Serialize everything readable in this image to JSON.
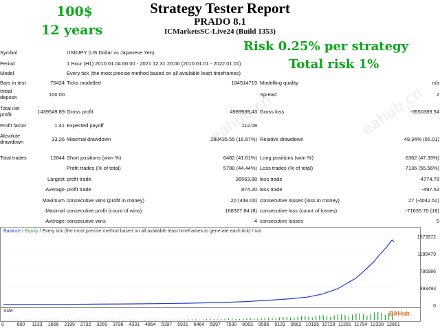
{
  "header": {
    "title": "Strategy Tester Report",
    "subtitle": "PRADO 8.1",
    "server": "ICMarketsSC-Live24 (Build 1353)"
  },
  "promo": {
    "deposit": "100$",
    "years": "12 years",
    "risk": "Risk 0.25% per strategy",
    "total": "Total risk 1%",
    "color": "#0da51c"
  },
  "watermark": "eahub.cn",
  "settings": {
    "symbol_label": "Symbol",
    "symbol_value": "USDJPY (US Dollar vs Japanese Yen)",
    "period_label": "Period",
    "period_value": "1 Hour (H1) 2010.01.04 00:00 - 2021.12.31 20:00 (2010.01.01 - 2022.01.01)",
    "model_label": "Model",
    "model_value": "Every tick (the most precise method based on all available least timeframes)"
  },
  "stats": {
    "bars_label": "Bars in test",
    "bars_value": "75424",
    "ticks_label": "Ticks modelled",
    "ticks_value": "184514719",
    "quality_label": "Modelling quality",
    "quality_value": "n/a",
    "deposit_label": "Initial deposit",
    "deposit_value": "100.00",
    "spread_label": "Spread",
    "spread_value": "2",
    "netprofit_label": "Total net profit",
    "netprofit_value": "1439549.89",
    "grossprofit_label": "Gross profit",
    "grossprofit_value": "4989939.43",
    "grossloss_label": "Gross loss",
    "grossloss_value": "-3550389.54",
    "pf_label": "Profit factor",
    "pf_value": "1.41",
    "payoff_label": "Expected payoff",
    "payoff_value": "112.08",
    "absdd_label": "Absolute drawdown",
    "absdd_value": "33.26",
    "maxdd_label": "Maximal drawdown",
    "maxdd_value": "280435.55 (16.97%)",
    "reldd_label": "Relative drawdown",
    "reldd_value": "49.34% (65.01)",
    "trades_label": "Total trades",
    "trades_value": "12844",
    "short_label": "Short positions (won %)",
    "short_value": "6482 (41.61%)",
    "long_label": "Long positions (won %)",
    "long_value": "6362 (47.33%)",
    "profittrades_label": "Profit trades (% of total)",
    "profittrades_value": "5708 (44.44%)",
    "losstrades_label": "Loss trades (% of total)",
    "losstrades_value": "7136 (55.56%)",
    "largest_label": "Largest",
    "largest_profit_label": "profit trade",
    "largest_profit_value": "36563.88",
    "largest_loss_label": "loss trade",
    "largest_loss_value": "-4774.78",
    "average_label": "Average",
    "average_profit_label": "profit trade",
    "average_profit_value": "874.20",
    "average_loss_label": "loss trade",
    "average_loss_value": "-497.53",
    "maximum_label": "Maximum",
    "max_cw_label": "consecutive wins (profit in money)",
    "max_cw_value": "20 (448.00)",
    "max_cl_label": "consecutive losses (loss in money)",
    "max_cl_value": "27 (-4042.52)",
    "maximal_label": "Maximal",
    "maximal_cp_label": "consecutive profit (count of wins)",
    "maximal_cp_value": "168327.84 (8)",
    "maximal_cl_label": "consecutive loss (count of losses)",
    "maximal_cl_value": "-71635.70 (18)",
    "avg2_label": "Average",
    "avg_cw_label": "consecutive wins",
    "avg_cw_value": "4",
    "avg_cl_label": "consecutive losses",
    "avg_cl_value": "5"
  },
  "chart_data": {
    "type": "line",
    "legend_balance": "Balance",
    "legend_sep": " / ",
    "legend_equity": "Equity",
    "legend_rest": " / Every tick (the most precise method based on all available least timeframes to generate each tick) / n/a",
    "size_label": "Size",
    "colors": {
      "balance": "#1a3cc8",
      "equity": "#19a629"
    },
    "yticks": [
      "1573972",
      "1180479",
      "786986",
      "393493",
      "0"
    ],
    "xticks": [
      "0",
      "600",
      "1133",
      "1666",
      "2199",
      "2732",
      "3265",
      "3798",
      "4331",
      "4864",
      "5397",
      "5931",
      "6464",
      "6997",
      "7530",
      "8063",
      "8596",
      "9129",
      "9662",
      "10195",
      "10728",
      "11261",
      "11794",
      "12328",
      "12861"
    ],
    "ylim": [
      0,
      1573972
    ],
    "xlim": [
      0,
      12861
    ],
    "series": [
      {
        "name": "Balance",
        "x": [
          0,
          1000,
          2000,
          3000,
          4000,
          5000,
          6000,
          7000,
          7500,
          8000,
          8500,
          9000,
          9500,
          10000,
          10500,
          11000,
          11300,
          11600,
          11800,
          12000,
          12200,
          12400,
          12600,
          12800,
          12861
        ],
        "y": [
          100,
          2000,
          5000,
          9000,
          14000,
          20000,
          30000,
          45000,
          55000,
          70000,
          90000,
          110000,
          135000,
          170000,
          240000,
          360000,
          480000,
          600000,
          720000,
          850000,
          980000,
          1150000,
          1300000,
          1480000,
          1439649
        ]
      }
    ]
  },
  "logo": "EAHub"
}
